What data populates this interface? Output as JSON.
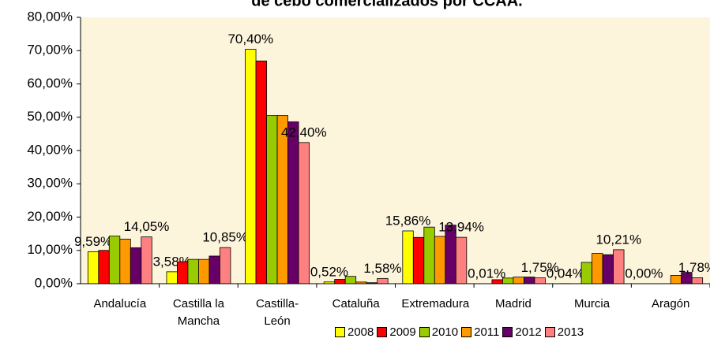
{
  "chart_data": {
    "type": "bar",
    "title": "de cebo comercializados por CCAA.",
    "categories": [
      "Andalucía",
      "Castilla la Mancha",
      "Castilla-León",
      "Cataluña",
      "Extremadura",
      "Madrid",
      "Murcia",
      "Aragón"
    ],
    "series": [
      {
        "name": "2008",
        "color": "#ffff00",
        "values": [
          9.59,
          3.58,
          70.4,
          0.52,
          15.86,
          0.01,
          0.04,
          0.0
        ],
        "value_labels": [
          "9,59%",
          "3,58%",
          "70,40%",
          "0,52%",
          "15,86%",
          "0,01%",
          "0,04%",
          "0,00%"
        ]
      },
      {
        "name": "2009",
        "color": "#ff0000",
        "values": [
          10.0,
          6.6,
          66.9,
          1.3,
          13.9,
          1.2,
          0,
          0
        ]
      },
      {
        "name": "2010",
        "color": "#99cc00",
        "values": [
          14.3,
          7.3,
          50.5,
          2.2,
          17.0,
          1.7,
          6.4,
          0
        ]
      },
      {
        "name": "2011",
        "color": "#ff9900",
        "values": [
          13.4,
          7.3,
          50.5,
          0.5,
          14.2,
          2.0,
          9.1,
          2.5
        ]
      },
      {
        "name": "2012",
        "color": "#660066",
        "values": [
          10.8,
          8.3,
          48.6,
          0.3,
          17.6,
          2.0,
          8.7,
          3.4
        ]
      },
      {
        "name": "2013",
        "color": "#ff8080",
        "values": [
          14.05,
          10.85,
          42.4,
          1.58,
          13.94,
          1.75,
          10.21,
          1.78
        ],
        "value_labels": [
          "14,05%",
          "10,85%",
          "42,40%",
          "1,58%",
          "13,94%",
          "1,75%",
          "10,21%",
          "1,78%"
        ]
      }
    ],
    "ylim": [
      0,
      80
    ],
    "yticks": [
      {
        "value": 0,
        "label": "0,00%"
      },
      {
        "value": 10,
        "label": "10,00%"
      },
      {
        "value": 20,
        "label": "20,00%"
      },
      {
        "value": 30,
        "label": "30,00%"
      },
      {
        "value": 40,
        "label": "40,00%"
      },
      {
        "value": 50,
        "label": "50,00%"
      },
      {
        "value": 60,
        "label": "60,00%"
      },
      {
        "value": 70,
        "label": "70,00%"
      },
      {
        "value": 80,
        "label": "80,00%"
      }
    ],
    "legend": "bottom"
  }
}
